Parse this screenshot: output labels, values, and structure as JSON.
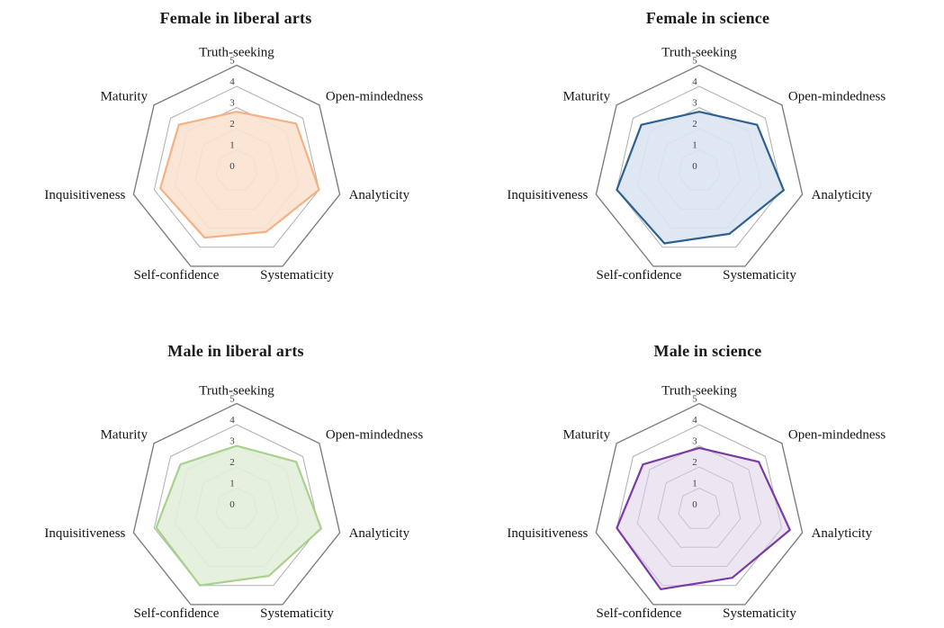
{
  "figure": {
    "background": "#FFFFFF",
    "layout": "2x2 grid of radar charts",
    "legend_position": "none"
  },
  "chart_data": {
    "type": "radar",
    "axes": [
      "Truth-seeking",
      "Open-mindedness",
      "Analyticity",
      "Systematicity",
      "Self-confidence",
      "Inquisitiveness",
      "Maturity"
    ],
    "scale": {
      "min": 0,
      "max": 5,
      "ticks": [
        0,
        1,
        2,
        3,
        4,
        5
      ]
    },
    "grid": "concentric heptagons, no radial spokes, tick labels along top axis",
    "grid_colors": {
      "outer_ring": "#7F7F7F",
      "inner_rings": "#AFAFAF",
      "tick_text": "#3F3F3F",
      "label_text": "#141414"
    },
    "charts": [
      {
        "title": "Female in liberal arts",
        "stroke": "#F5B183",
        "fill": "#FBE3D1",
        "fill_opacity": 0.9,
        "values": {
          "Truth-seeking": 2.8,
          "Open-mindedness": 3.6,
          "Analyticity": 4.0,
          "Systematicity": 3.2,
          "Self-confidence": 3.5,
          "Inquisitiveness": 3.7,
          "Maturity": 3.5
        }
      },
      {
        "title": "Female in science",
        "stroke": "#2E6090",
        "fill": "#DBE5F1",
        "fill_opacity": 0.9,
        "values": {
          "Truth-seeking": 2.8,
          "Open-mindedness": 3.5,
          "Analyticity": 4.1,
          "Systematicity": 3.3,
          "Self-confidence": 3.8,
          "Inquisitiveness": 4.0,
          "Maturity": 3.5
        }
      },
      {
        "title": "Male in liberal arts",
        "stroke": "#A9D18E",
        "fill": "#E2EFDA",
        "fill_opacity": 0.9,
        "values": {
          "Truth-seeking": 3.0,
          "Open-mindedness": 3.6,
          "Analyticity": 4.1,
          "Systematicity": 3.5,
          "Self-confidence": 4.0,
          "Inquisitiveness": 3.9,
          "Maturity": 3.4
        }
      },
      {
        "title": "Male in science",
        "stroke": "#7A3BA5",
        "fill": "#DCD0E8",
        "fill_opacity": 0.55,
        "values": {
          "Truth-seeking": 2.9,
          "Open-mindedness": 3.6,
          "Analyticity": 4.4,
          "Systematicity": 3.6,
          "Self-confidence": 4.2,
          "Inquisitiveness": 4.0,
          "Maturity": 3.4
        }
      }
    ]
  }
}
